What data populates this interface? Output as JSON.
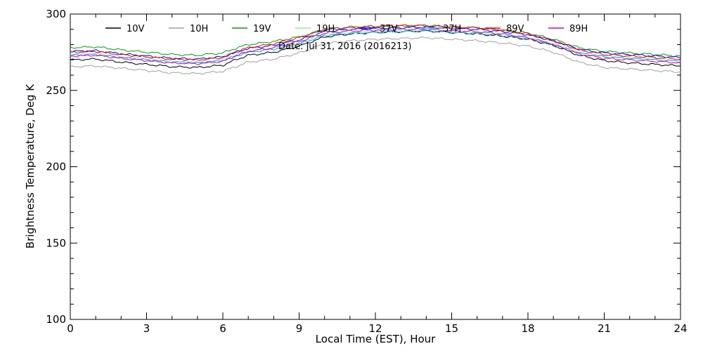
{
  "chart_data": {
    "type": "line",
    "xlabel": "Local Time (EST), Hour",
    "ylabel": "Brightness Temperature, Deg K",
    "xlim": [
      0,
      24
    ],
    "ylim": [
      100,
      300
    ],
    "x_major_ticks": [
      0,
      3,
      6,
      9,
      12,
      15,
      18,
      21,
      24
    ],
    "x_minor_step": 1,
    "y_major_ticks": [
      100,
      150,
      200,
      250,
      300
    ],
    "y_minor_step": 10,
    "grid": false,
    "legend_position": "top",
    "annotation": "Date: Jul 31, 2016 (2016213)",
    "x": [
      0,
      1,
      2,
      3,
      4,
      5,
      6,
      6.5,
      7,
      8,
      9,
      10,
      11,
      12,
      13,
      14,
      15,
      16,
      17,
      18,
      19,
      20,
      21,
      22,
      23,
      24
    ],
    "series": [
      {
        "name": "10V",
        "color": "#000000",
        "values": [
          270,
          270.5,
          268.5,
          267,
          265.5,
          265,
          266.5,
          270,
          273,
          275,
          279,
          285,
          287,
          288,
          288.5,
          289,
          288,
          287,
          285.5,
          283.5,
          279.5,
          273,
          269.5,
          268,
          267,
          266
        ]
      },
      {
        "name": "10H",
        "color": "#a0a0a0",
        "values": [
          265.5,
          266,
          264.5,
          263,
          261.5,
          261,
          262.5,
          265.5,
          268.5,
          270.5,
          274.5,
          280.5,
          282.5,
          283.5,
          284,
          284.5,
          283.5,
          282.5,
          281,
          279,
          275,
          268.5,
          265,
          264,
          263,
          262
        ]
      },
      {
        "name": "19V",
        "color": "#00a000",
        "values": [
          278,
          278.5,
          276.5,
          275,
          273.5,
          273,
          274.5,
          277.5,
          280,
          282,
          285,
          289.5,
          291,
          291.5,
          292,
          292.5,
          291.5,
          291,
          289.5,
          287.5,
          283.5,
          278,
          275.5,
          274.5,
          273.5,
          272.5
        ]
      },
      {
        "name": "19H",
        "color": "#90ee90",
        "values": [
          273.5,
          274,
          272,
          270.5,
          269,
          268.5,
          270,
          273,
          275.5,
          277.5,
          281,
          286.5,
          288,
          288.5,
          289,
          289.5,
          288.5,
          288,
          286.5,
          284.5,
          280.5,
          275,
          272.5,
          271.5,
          270.5,
          269.5
        ]
      },
      {
        "name": "37V",
        "color": "#0000ff",
        "values": [
          275.5,
          276,
          274,
          272.5,
          271,
          270.5,
          272,
          275,
          277.5,
          279.5,
          283,
          288.5,
          290,
          290.5,
          291,
          291.5,
          290.5,
          290,
          288.5,
          286.5,
          282.5,
          277,
          274.5,
          273.5,
          272.5,
          271.5
        ]
      },
      {
        "name": "37H",
        "color": "#00b4d8",
        "values": [
          273,
          273.5,
          271.5,
          270,
          268.5,
          268,
          269.5,
          272.5,
          275,
          277,
          280.5,
          286,
          287.5,
          288,
          288.5,
          289,
          288,
          287.5,
          286,
          284,
          280,
          274.5,
          272,
          271,
          270,
          269
        ]
      },
      {
        "name": "89V",
        "color": "#ff0000",
        "values": [
          275,
          275.5,
          273.5,
          272,
          270.5,
          270,
          271.5,
          275,
          278,
          280.5,
          284.5,
          290,
          291.5,
          292,
          292.5,
          292.5,
          291.5,
          291,
          289.5,
          287,
          282.5,
          276.5,
          273.5,
          272.5,
          271.5,
          270.5
        ]
      },
      {
        "name": "89H",
        "color": "#cc00cc",
        "values": [
          272.5,
          273,
          271,
          269.5,
          268,
          267.5,
          269,
          272.5,
          275.5,
          278,
          282,
          287.5,
          289,
          289.5,
          290,
          290,
          289,
          288.5,
          287,
          284.5,
          280,
          274,
          271,
          270,
          269,
          268
        ]
      }
    ]
  }
}
